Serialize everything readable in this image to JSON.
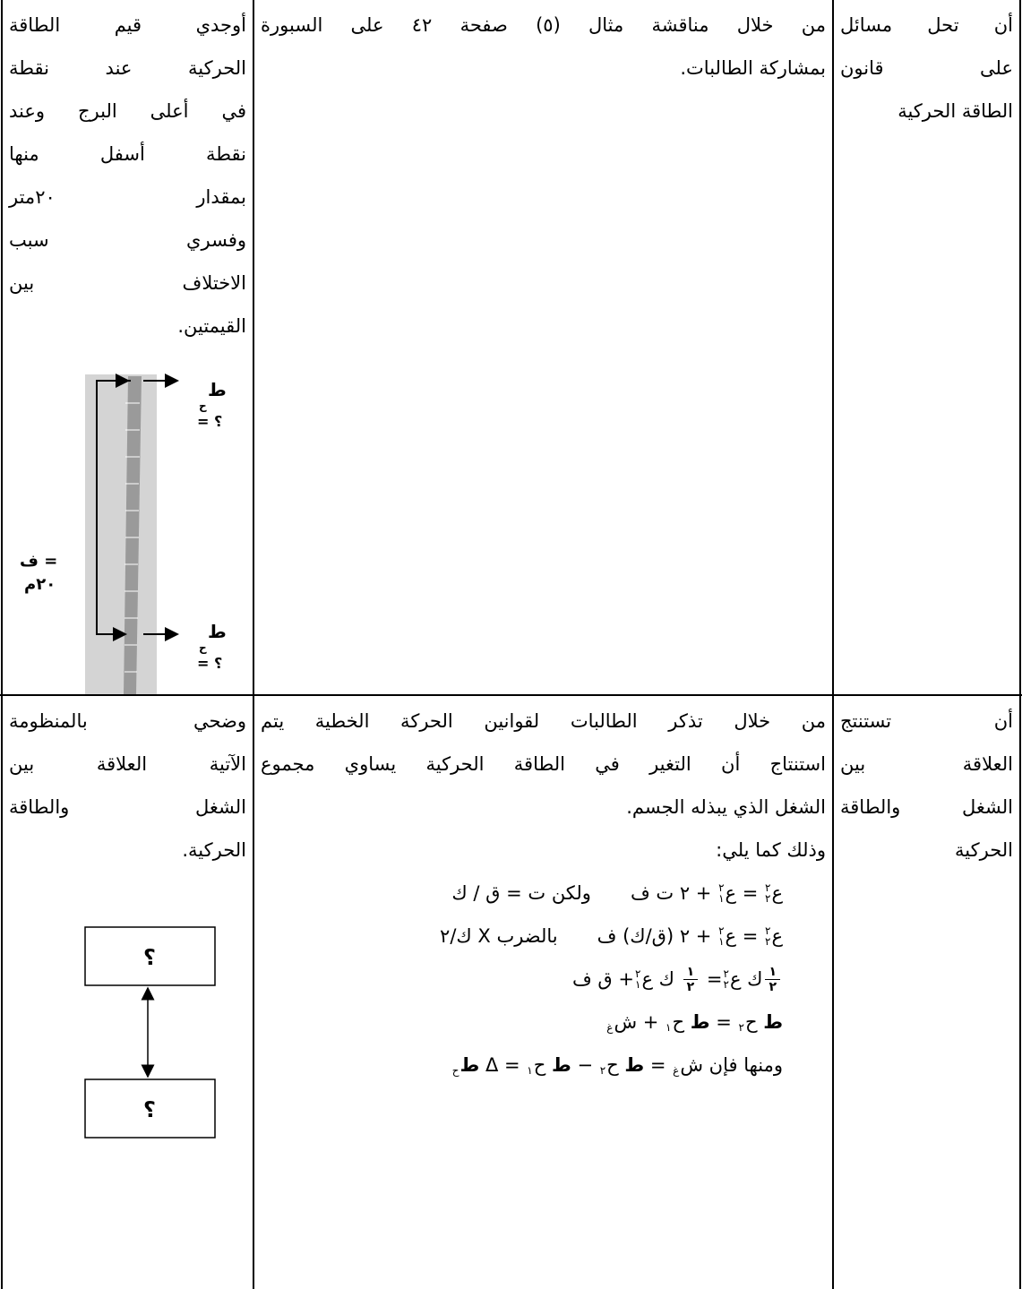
{
  "table": {
    "rows": [
      {
        "objective": {
          "lines": [
            "أن تحل مسائل",
            "على قانون",
            "الطاقة الحركية"
          ]
        },
        "procedure": {
          "lines": [
            "من خلال مناقشة مثال (٥) صفحة ٤٢ على السبورة",
            "بمشاركة الطالبات."
          ]
        },
        "assessment": {
          "lines": [
            "أوجدي قيم الطاقة",
            "الحركية عند نقطة",
            "في أعلى البرج وعند",
            "نقطة أسفل منها",
            "بمقدار ٢٠متر",
            "وفسري سبب",
            "الاختلاف بين",
            "القيمتين."
          ],
          "figure": {
            "top_label": {
              "symbol": "ط",
              "sub": "ح",
              "value": "= ؟"
            },
            "distance": [
              "ف =",
              "٢٠م"
            ],
            "bottom_label": {
              "symbol": "ط",
              "sub": "ح",
              "value": "= ؟"
            }
          }
        }
      },
      {
        "objective": {
          "lines": [
            "أن تستنتج",
            "العلاقة بين",
            "الشغل والطاقة",
            "الحركية"
          ]
        },
        "procedure": {
          "lines": [
            "من خلال تذكر الطالبات لقوانين الحركة الخطية يتم",
            "استنتاج أن التغير في الطاقة الحركية يساوي مجموع",
            "الشغل الذي يبذله الجسم."
          ],
          "intro": "وذلك كما يلي:",
          "equations": [
            {
              "tokens": [
                {
                  "text": "ع",
                  "sub": "٢",
                  "sup": "٢"
                },
                {
                  "text": " = ع",
                  "sub": "١",
                  "sup": "٢"
                },
                {
                  "text": " + ٢ ت ف"
                }
              ],
              "note": "ولكن ت = ق / ك"
            },
            {
              "tokens": [
                {
                  "text": "ع",
                  "sub": "٢",
                  "sup": "٢"
                },
                {
                  "text": " = ع",
                  "sub": "١",
                  "sup": "٢"
                },
                {
                  "text": " + ٢ (ق/ك) ف"
                }
              ],
              "note": "بالضرب X ك/٢"
            },
            {
              "tokens": [
                {
                  "num": "١",
                  "den": "٢"
                },
                {
                  "text": "ك ع",
                  "sub": "٢",
                  "sup": "٢"
                },
                {
                  "text": "= "
                },
                {
                  "num": "١",
                  "den": "٢"
                },
                {
                  "text": " ك ع",
                  "sub": "١",
                  "sup": "٢"
                },
                {
                  "text": "+ ق ف"
                }
              ]
            },
            {
              "tokens": [
                {
                  "bold": "ط",
                  "text": " ح",
                  "sub": "٢"
                },
                {
                  "text": " = "
                },
                {
                  "bold": "ط",
                  "text": " ح",
                  "sub": "١"
                },
                {
                  "text": " + ش",
                  "sub": "غ"
                }
              ]
            },
            {
              "tokens": [
                {
                  "text": "ومنها فإن ش",
                  "sub": "غ"
                },
                {
                  "text": " = "
                },
                {
                  "bold": "ط",
                  "text": " ح",
                  "sub": "٢"
                },
                {
                  "text": " − "
                },
                {
                  "bold": "ط",
                  "text": " ح",
                  "sub": "١"
                },
                {
                  "text": " = Δ "
                },
                {
                  "bold": "ط",
                  "sub": "ح"
                }
              ]
            }
          ]
        },
        "assessment": {
          "lines": [
            "وضحي بالمنظومة",
            "الآتية العلاقة بين",
            "الشغل والطاقة",
            "الحركية."
          ],
          "diagram": {
            "top_box": "؟",
            "bottom_box": "؟"
          }
        }
      }
    ]
  }
}
